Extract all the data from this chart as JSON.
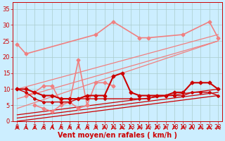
{
  "background_color": "#cceeff",
  "grid_color": "#aacccc",
  "xlabel": "Vent moyen/en rafales ( km/h )",
  "xlabel_color": "#cc0000",
  "xlabel_fontsize": 7,
  "tick_color": "#cc0000",
  "tick_fontsize": 6,
  "axis_color": "#cc0000",
  "xlim": [
    -0.5,
    23.5
  ],
  "ylim": [
    0,
    37
  ],
  "yticks": [
    0,
    5,
    10,
    15,
    20,
    25,
    30,
    35
  ],
  "xticks": [
    0,
    1,
    2,
    3,
    4,
    5,
    6,
    7,
    8,
    9,
    10,
    11,
    12,
    13,
    14,
    15,
    16,
    17,
    18,
    19,
    20,
    21,
    22,
    23
  ],
  "pink_top_line": {
    "x": [
      0,
      1,
      9,
      11,
      14,
      15,
      19,
      22,
      23
    ],
    "y": [
      24,
      21,
      27,
      31,
      26,
      26,
      27,
      31,
      26
    ],
    "color": "#f08080",
    "lw": 1.2,
    "ms": 2.5
  },
  "pink_trend_lines": [
    {
      "x0": 0,
      "y0": 10,
      "x1": 23,
      "y1": 27,
      "color": "#f08080",
      "lw": 0.9
    },
    {
      "x0": 0,
      "y0": 7,
      "x1": 23,
      "y1": 25,
      "color": "#f08080",
      "lw": 0.9
    },
    {
      "x0": 0,
      "y0": 4,
      "x1": 23,
      "y1": 25,
      "color": "#f08080",
      "lw": 0.9
    }
  ],
  "pink_wavy_upper": {
    "x": [
      1,
      2,
      3,
      4,
      5,
      6,
      7,
      8,
      9,
      10,
      11
    ],
    "y": [
      8,
      9,
      11,
      11,
      6,
      6,
      19,
      5,
      12,
      12,
      11
    ],
    "color": "#f08080",
    "lw": 1.2,
    "ms": 2.5
  },
  "pink_wavy_lower": {
    "x": [
      2,
      3,
      4,
      5,
      6,
      7,
      8
    ],
    "y": [
      5,
      4,
      3,
      5,
      6,
      4,
      5
    ],
    "color": "#f08080",
    "lw": 1.2,
    "ms": 2.5
  },
  "red_trend_lines": [
    {
      "x0": 0,
      "y0": 2,
      "x1": 23,
      "y1": 10,
      "color": "#cc0000",
      "lw": 0.9
    },
    {
      "x0": 0,
      "y0": 1,
      "x1": 23,
      "y1": 9,
      "color": "#cc0000",
      "lw": 0.9
    },
    {
      "x0": 0,
      "y0": 0,
      "x1": 23,
      "y1": 8,
      "color": "#cc0000",
      "lw": 0.9
    }
  ],
  "red_main_line": {
    "x": [
      0,
      1,
      2,
      3,
      4,
      5,
      6,
      7,
      8,
      9,
      10,
      11,
      12,
      13,
      14,
      15,
      16,
      17,
      18,
      19,
      20,
      21,
      22,
      23
    ],
    "y": [
      10,
      10,
      9,
      8,
      8,
      7,
      7,
      7,
      8,
      8,
      8,
      14,
      15,
      9,
      8,
      8,
      8,
      8,
      9,
      9,
      12,
      12,
      12,
      10
    ],
    "color": "#cc0000",
    "lw": 1.5,
    "ms": 2.5
  },
  "red_lower_line": {
    "x": [
      0,
      1,
      2,
      3,
      4,
      5,
      6,
      7,
      8,
      9,
      10,
      13,
      14,
      15,
      16,
      17,
      18,
      19,
      20,
      21,
      22,
      23
    ],
    "y": [
      10,
      9,
      7,
      6,
      6,
      6,
      6,
      7,
      7,
      7,
      7,
      7,
      7,
      7,
      8,
      8,
      8,
      8,
      9,
      9,
      9,
      8
    ],
    "color": "#cc0000",
    "lw": 1.0,
    "ms": 2.0
  },
  "wind_arrows": {
    "x": [
      0,
      1,
      2,
      3,
      4,
      5,
      6,
      7,
      8,
      9,
      10,
      11,
      12,
      13,
      14,
      15,
      16,
      17,
      18,
      19,
      20,
      21,
      22,
      23
    ],
    "color": "#cc0000"
  }
}
